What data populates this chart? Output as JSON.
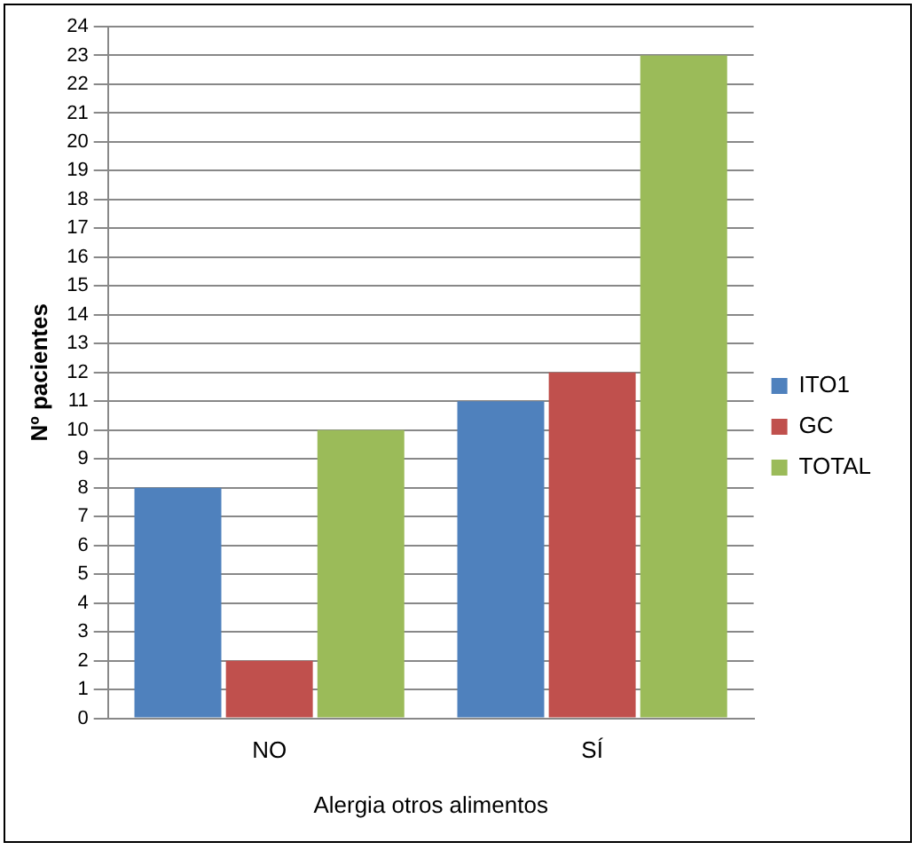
{
  "chart_data": {
    "type": "bar",
    "xlabel": "Alergia otros alimentos",
    "ylabel": "Nº pacientes",
    "categories": [
      "NO",
      "SÍ"
    ],
    "series": [
      {
        "name": "ITO1",
        "color": "#4f81bd",
        "values": [
          8,
          11
        ]
      },
      {
        "name": "GC",
        "color": "#c0504d",
        "values": [
          2,
          12
        ]
      },
      {
        "name": "TOTAL",
        "color": "#9bbb59",
        "values": [
          10,
          23
        ]
      }
    ],
    "ylim": [
      0,
      24
    ],
    "yticks": [
      0,
      1,
      2,
      3,
      4,
      5,
      6,
      7,
      8,
      9,
      10,
      11,
      12,
      13,
      14,
      15,
      16,
      17,
      18,
      19,
      20,
      21,
      22,
      23,
      24
    ],
    "grid": "y",
    "legend": "right"
  }
}
